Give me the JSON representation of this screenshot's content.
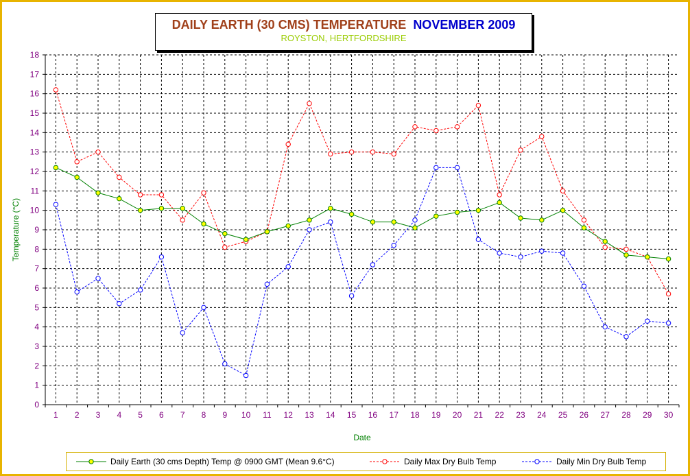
{
  "chart_data": {
    "type": "line",
    "title": "DAILY EARTH (30 CMS) TEMPERATURE",
    "title_month": "NOVEMBER 2009",
    "subtitle": "ROYSTON, HERTFORDSHIRE",
    "xlabel": "Date",
    "ylabel": "Temperature (°C)",
    "ylim": [
      0,
      18
    ],
    "grid": true,
    "legend_position": "bottom",
    "x": [
      1,
      2,
      3,
      4,
      5,
      6,
      7,
      8,
      9,
      10,
      11,
      12,
      13,
      14,
      15,
      16,
      17,
      18,
      19,
      20,
      21,
      22,
      23,
      24,
      25,
      26,
      27,
      28,
      29,
      30
    ],
    "series": [
      {
        "name": "Daily Earth (30 cms Depth) Temp @ 0900 GMT (Mean 9.6°C)",
        "color": "#008000",
        "marker_fill": "#ffff00",
        "dash": false,
        "values": [
          12.2,
          11.7,
          10.9,
          10.6,
          10.0,
          10.1,
          10.1,
          9.3,
          8.8,
          8.5,
          8.9,
          9.2,
          9.5,
          10.1,
          9.8,
          9.4,
          9.4,
          9.1,
          9.7,
          9.9,
          10.0,
          10.4,
          9.6,
          9.5,
          10.0,
          9.1,
          8.4,
          7.7,
          7.6,
          7.5
        ]
      },
      {
        "name": "Daily Max Dry Bulb Temp",
        "color": "#ff0000",
        "marker_fill": "#ffffff",
        "dash": true,
        "values": [
          16.2,
          12.5,
          13.0,
          11.7,
          10.8,
          10.8,
          9.5,
          10.9,
          8.1,
          8.4,
          8.9,
          13.4,
          15.5,
          12.9,
          13.0,
          13.0,
          12.9,
          14.3,
          14.1,
          14.3,
          15.4,
          10.8,
          13.1,
          13.8,
          11.0,
          9.5,
          8.1,
          8.0,
          7.6,
          5.7
        ]
      },
      {
        "name": "Daily Min Dry Bulb Temp",
        "color": "#0000ff",
        "marker_fill": "#ffffff",
        "dash": true,
        "values": [
          10.3,
          5.8,
          6.5,
          5.2,
          5.9,
          7.6,
          3.7,
          5.0,
          2.1,
          1.5,
          6.2,
          7.1,
          9.0,
          9.4,
          5.6,
          7.2,
          8.2,
          9.5,
          12.2,
          12.2,
          8.5,
          7.8,
          7.6,
          7.9,
          7.8,
          6.1,
          4.0,
          3.5,
          4.3,
          4.2
        ]
      }
    ],
    "y_tick_color": "#800080",
    "x_tick_color": "#800080"
  }
}
